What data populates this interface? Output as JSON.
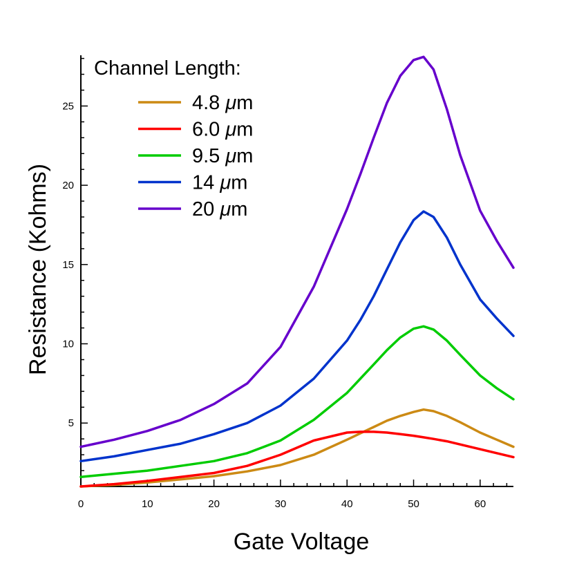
{
  "chart_data": {
    "type": "line",
    "xlabel": "Gate Voltage",
    "ylabel": "Resistance (Kohms)",
    "xlim": [
      0,
      65
    ],
    "ylim": [
      1,
      28.2
    ],
    "x_ticks": [
      0,
      10,
      20,
      30,
      40,
      50,
      60
    ],
    "y_ticks": [
      5,
      10,
      15,
      20,
      25
    ],
    "legend": {
      "title": "Channel Length:",
      "placement": "top-left"
    },
    "x": [
      0,
      5,
      10,
      15,
      20,
      25,
      30,
      35,
      40,
      42,
      44,
      46,
      48,
      50,
      51.5,
      53,
      55,
      57,
      60,
      62.5,
      65
    ],
    "series": [
      {
        "name": "4.8 μm",
        "label_value": "4.8",
        "color": "#cc8a14",
        "values": [
          1.0,
          1.1,
          1.25,
          1.45,
          1.65,
          1.95,
          2.35,
          3.0,
          3.95,
          4.35,
          4.75,
          5.15,
          5.45,
          5.7,
          5.85,
          5.75,
          5.45,
          5.05,
          4.4,
          3.95,
          3.5
        ]
      },
      {
        "name": "6.0 μm",
        "label_value": "6.0",
        "color": "#ff0000",
        "values": [
          1.0,
          1.15,
          1.35,
          1.6,
          1.85,
          2.3,
          3.0,
          3.9,
          4.4,
          4.45,
          4.45,
          4.4,
          4.3,
          4.2,
          4.1,
          4.0,
          3.85,
          3.65,
          3.35,
          3.1,
          2.85
        ]
      },
      {
        "name": "9.5 μm",
        "label_value": "9.5",
        "color": "#00cc00",
        "values": [
          1.6,
          1.8,
          2.0,
          2.3,
          2.6,
          3.1,
          3.9,
          5.2,
          6.9,
          7.8,
          8.7,
          9.6,
          10.4,
          10.95,
          11.1,
          10.9,
          10.2,
          9.3,
          8.0,
          7.2,
          6.5
        ]
      },
      {
        "name": "14 μm",
        "label_value": "14",
        "color": "#0033cc",
        "values": [
          2.6,
          2.9,
          3.3,
          3.7,
          4.3,
          5.0,
          6.1,
          7.8,
          10.2,
          11.5,
          13.0,
          14.7,
          16.4,
          17.8,
          18.35,
          18.0,
          16.7,
          15.0,
          12.8,
          11.6,
          10.5
        ]
      },
      {
        "name": "20 μm",
        "label_value": "20",
        "color": "#6600cc",
        "values": [
          3.5,
          3.95,
          4.5,
          5.2,
          6.2,
          7.5,
          9.8,
          13.6,
          18.5,
          20.7,
          23.0,
          25.2,
          26.9,
          27.9,
          28.1,
          27.3,
          24.8,
          21.9,
          18.4,
          16.5,
          14.8
        ]
      }
    ]
  }
}
